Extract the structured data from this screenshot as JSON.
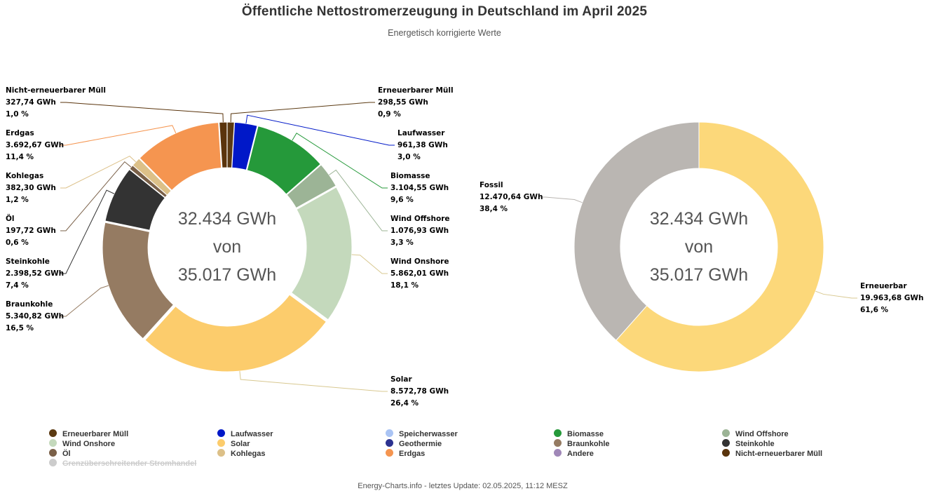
{
  "title": "Öffentliche Nettostromerzeugung in Deutschland im April 2025",
  "subtitle": "Energetisch korrigierte Werte",
  "footer": "Energy-Charts.info - letztes Update: 02.05.2025, 11:12 MESZ",
  "chart_data": [
    {
      "type": "pie",
      "variant": "donut",
      "center_text": [
        "32.434 GWh",
        "von",
        "35.017 GWh"
      ],
      "slices": [
        {
          "name": "Erneuerbarer Müll",
          "value": 298.55,
          "value_label": "298,55 GWh",
          "pct": "0,9 %",
          "color": "#5b3a12"
        },
        {
          "name": "Laufwasser",
          "value": 961.38,
          "value_label": "961,38 GWh",
          "pct": "3,0 %",
          "color": "#0018c8"
        },
        {
          "name": "Biomasse",
          "value": 3104.55,
          "value_label": "3.104,55 GWh",
          "pct": "9,6 %",
          "color": "#25993a"
        },
        {
          "name": "Wind Offshore",
          "value": 1076.93,
          "value_label": "1.076,93 GWh",
          "pct": "3,3 %",
          "color": "#9cb496"
        },
        {
          "name": "Wind Onshore",
          "value": 5862.01,
          "value_label": "5.862,01 GWh",
          "pct": "18,1 %",
          "color": "#c4d9bc"
        },
        {
          "name": "Solar",
          "value": 8572.78,
          "value_label": "8.572,78 GWh",
          "pct": "26,4 %",
          "color": "#fccc6c"
        },
        {
          "name": "Braunkohle",
          "value": 5340.82,
          "value_label": "5.340,82 GWh",
          "pct": "16,5 %",
          "color": "#957b62"
        },
        {
          "name": "Steinkohle",
          "value": 2398.52,
          "value_label": "2.398,52 GWh",
          "pct": "7,4 %",
          "color": "#333333"
        },
        {
          "name": "Öl",
          "value": 197.72,
          "value_label": "197,72 GWh",
          "pct": "0,6 %",
          "color": "#7a6048"
        },
        {
          "name": "Kohlegas",
          "value": 382.3,
          "value_label": "382,30 GWh",
          "pct": "1,2 %",
          "color": "#dcc088"
        },
        {
          "name": "Erdgas",
          "value": 3692.67,
          "value_label": "3.692,67 GWh",
          "pct": "11,4 %",
          "color": "#f59550"
        },
        {
          "name": "Nicht-erneuerbarer Müll",
          "value": 327.74,
          "value_label": "327,74 GWh",
          "pct": "1,0 %",
          "color": "#5a340c"
        }
      ]
    },
    {
      "type": "pie",
      "variant": "donut",
      "center_text": [
        "32.434 GWh",
        "von",
        "35.017 GWh"
      ],
      "slices": [
        {
          "name": "Erneuerbar",
          "value": 19963.68,
          "value_label": "19.963,68 GWh",
          "pct": "61,6 %",
          "color": "#fcd87a"
        },
        {
          "name": "Fossil",
          "value": 12470.64,
          "value_label": "12.470,64 GWh",
          "pct": "38,4 %",
          "color": "#bab6b2"
        }
      ]
    }
  ],
  "legend": [
    {
      "name": "Erneuerbarer Müll",
      "color": "#5b3a12"
    },
    {
      "name": "Laufwasser",
      "color": "#0018c8"
    },
    {
      "name": "Speicherwasser",
      "color": "#aac4f4"
    },
    {
      "name": "Biomasse",
      "color": "#25993a"
    },
    {
      "name": "Wind Offshore",
      "color": "#9cb496"
    },
    {
      "name": "Wind Onshore",
      "color": "#c4d9bc"
    },
    {
      "name": "Solar",
      "color": "#fccc6c"
    },
    {
      "name": "Geothermie",
      "color": "#2c3290"
    },
    {
      "name": "Braunkohle",
      "color": "#957b62"
    },
    {
      "name": "Steinkohle",
      "color": "#333333"
    },
    {
      "name": "Öl",
      "color": "#7a6048"
    },
    {
      "name": "Kohlegas",
      "color": "#dcc088"
    },
    {
      "name": "Erdgas",
      "color": "#f59550"
    },
    {
      "name": "Andere",
      "color": "#a088b8"
    },
    {
      "name": "Nicht-erneuerbarer Müll",
      "color": "#5a340c"
    },
    {
      "name": "Grenzüberschreitender Stromhandel",
      "color": "#cccccc",
      "hidden": true
    }
  ]
}
